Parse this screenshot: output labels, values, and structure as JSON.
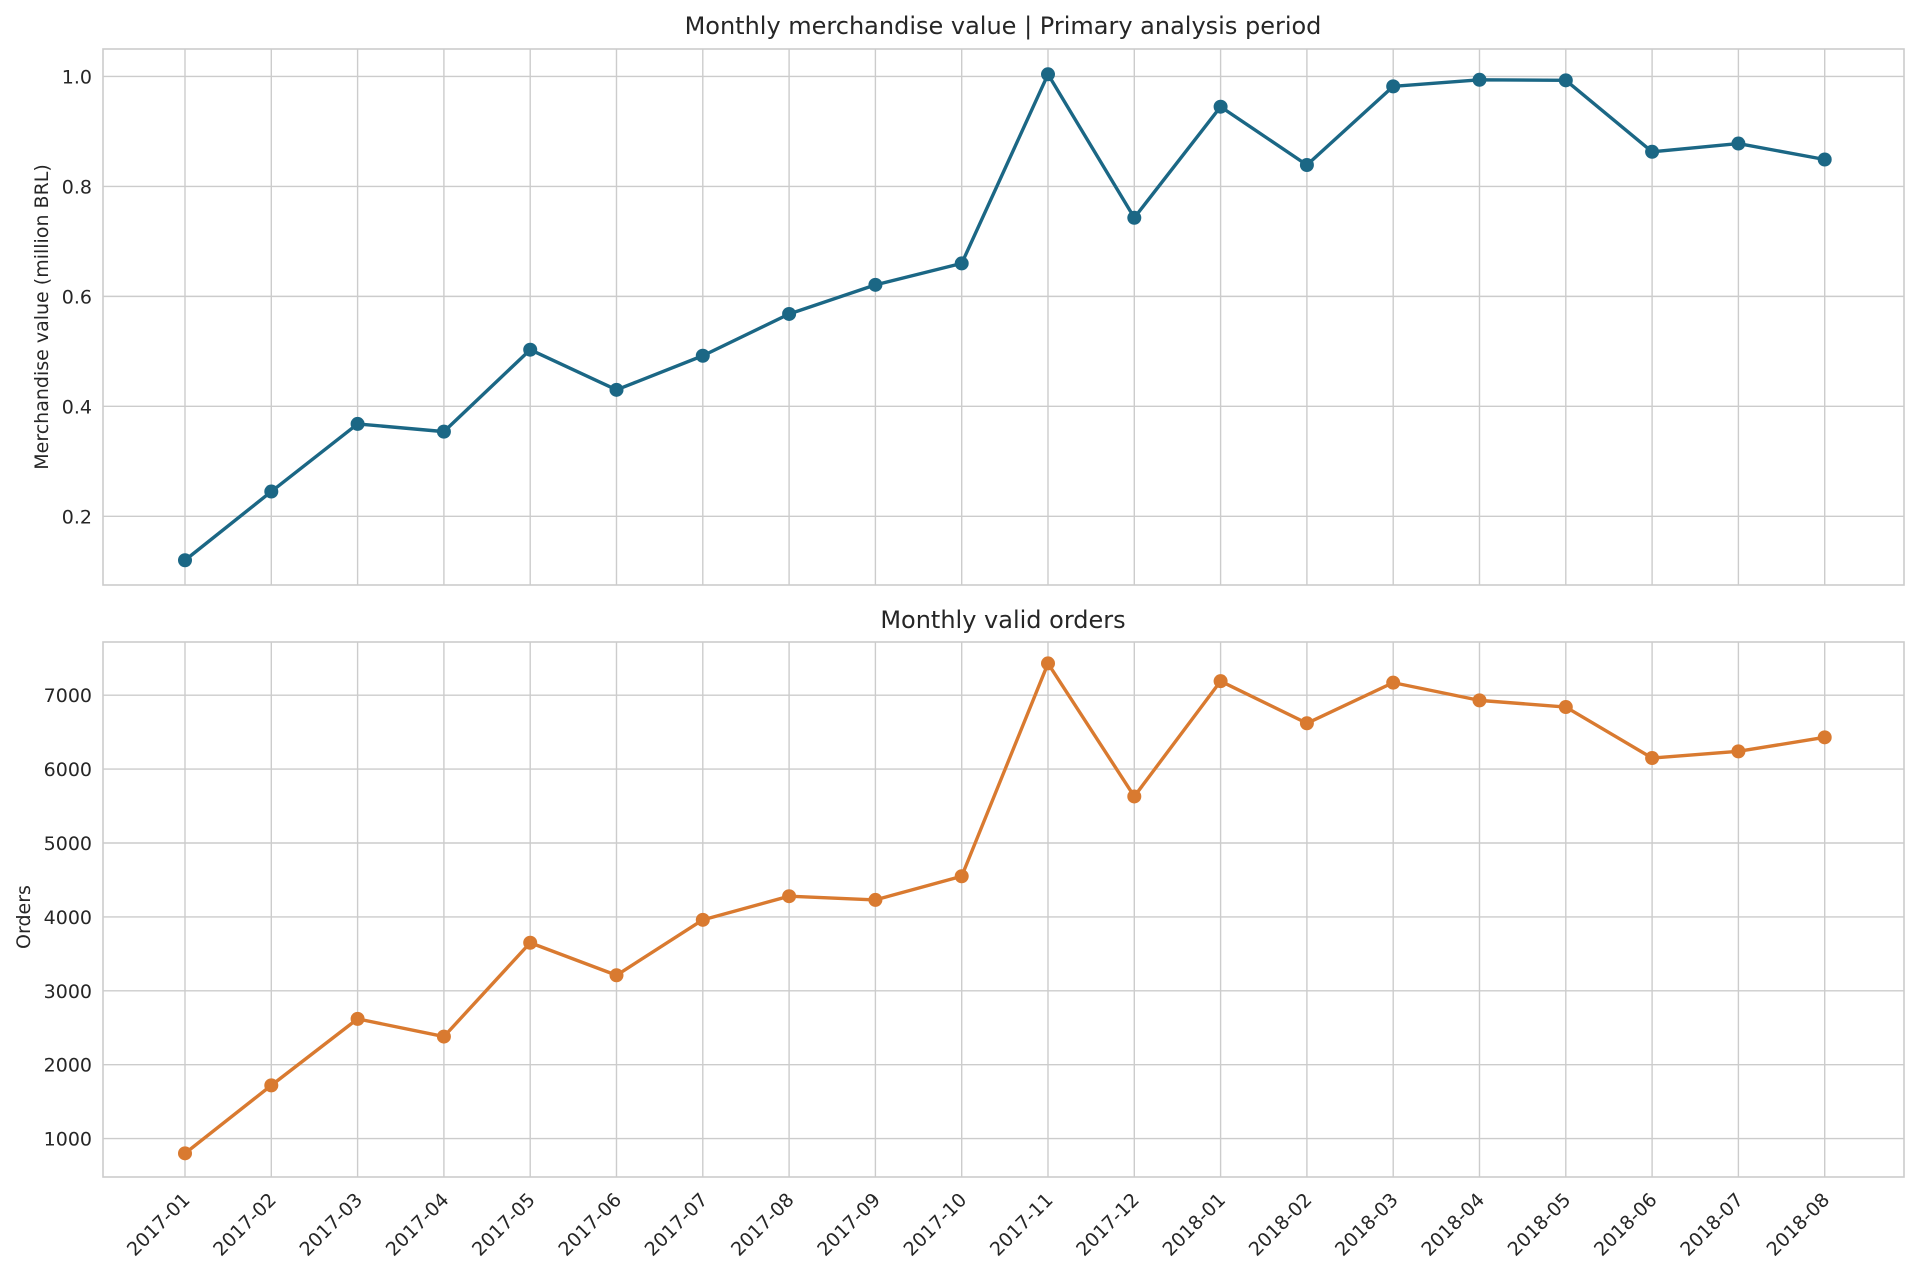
{
  "chart_data": [
    {
      "type": "line",
      "title": "Monthly merchandise value | Primary analysis period",
      "xlabel": "",
      "ylabel": "Merchandise value (million BRL)",
      "ylim": [
        0.075,
        1.05
      ],
      "yticks": [
        0.2,
        0.4,
        0.6,
        0.8,
        1.0
      ],
      "ytick_labels": [
        "0.2",
        "0.4",
        "0.6",
        "0.8",
        "1.0"
      ],
      "grid": true,
      "x_tick_labels_shown": false,
      "color": "#1b6785",
      "categories": [
        "2017-01",
        "2017-02",
        "2017-03",
        "2017-04",
        "2017-05",
        "2017-06",
        "2017-07",
        "2017-08",
        "2017-09",
        "2017-10",
        "2017-11",
        "2017-12",
        "2018-01",
        "2018-02",
        "2018-03",
        "2018-04",
        "2018-05",
        "2018-06",
        "2018-07",
        "2018-08"
      ],
      "series": [
        {
          "values": [
            0.12,
            0.245,
            0.368,
            0.354,
            0.503,
            0.43,
            0.492,
            0.568,
            0.621,
            0.66,
            1.004,
            0.743,
            0.945,
            0.839,
            0.982,
            0.994,
            0.993,
            0.863,
            0.878,
            0.849
          ]
        }
      ]
    },
    {
      "type": "line",
      "title": "Monthly valid orders",
      "xlabel": "",
      "ylabel": "Orders",
      "ylim": [
        480,
        7720
      ],
      "yticks": [
        1000,
        2000,
        3000,
        4000,
        5000,
        6000,
        7000
      ],
      "ytick_labels": [
        "1000",
        "2000",
        "3000",
        "4000",
        "5000",
        "6000",
        "7000"
      ],
      "grid": true,
      "x_tick_labels_shown": true,
      "color": "#d97a30",
      "categories": [
        "2017-01",
        "2017-02",
        "2017-03",
        "2017-04",
        "2017-05",
        "2017-06",
        "2017-07",
        "2017-08",
        "2017-09",
        "2017-10",
        "2017-11",
        "2017-12",
        "2018-01",
        "2018-02",
        "2018-03",
        "2018-04",
        "2018-05",
        "2018-06",
        "2018-07",
        "2018-08"
      ],
      "series": [
        {
          "values": [
            800,
            1720,
            2620,
            2380,
            3650,
            3210,
            3960,
            4280,
            4230,
            4550,
            7430,
            5630,
            7190,
            6620,
            7170,
            6930,
            6840,
            6150,
            6240,
            6430
          ]
        }
      ]
    }
  ]
}
